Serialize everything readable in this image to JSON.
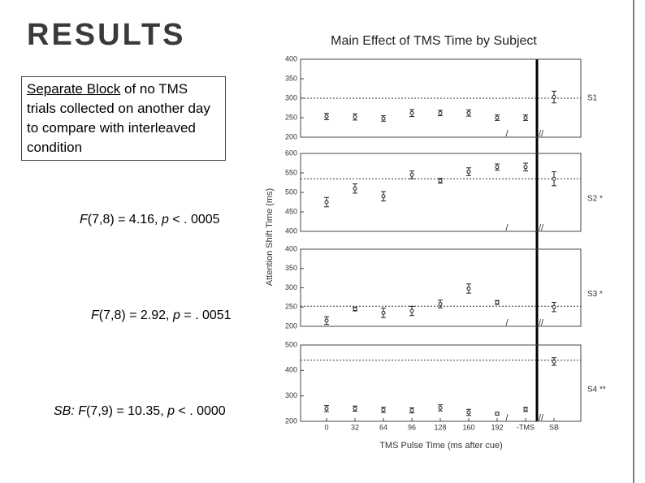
{
  "title": "RESULTS",
  "note": {
    "underlined": "Separate Block",
    "text": " of no TMS trials collected on another day to compare with interleaved condition"
  },
  "stats": [
    [
      "F",
      "(7,8) = 4.16, ",
      "p",
      " < . 0005"
    ],
    [
      "F",
      "(7,8) = 2.92, ",
      "p",
      " = . 0051"
    ],
    [
      "SB: F",
      "(7,9) = 10.35, ",
      "p",
      " < . 0000"
    ]
  ],
  "chart_data": {
    "type": "errorbar",
    "title": "Main Effect of TMS Time by Subject",
    "ylabel": "Attention Shift Time (ms)",
    "xlabel": "TMS Pulse Time (ms after cue)",
    "categories": [
      "0",
      "32",
      "64",
      "96",
      "128",
      "160",
      "192",
      "-TMS",
      "SB"
    ],
    "panels": [
      {
        "name": "S1",
        "ylim": [
          200,
          400
        ],
        "yticks": [
          200,
          250,
          300,
          350,
          400
        ],
        "reference": 300,
        "values": [
          253,
          252,
          248,
          262,
          262,
          262,
          250,
          250,
          303
        ],
        "errors": [
          8,
          8,
          7,
          9,
          7,
          8,
          7,
          7,
          15
        ]
      },
      {
        "name": "S2 *",
        "ylim": [
          400,
          600
        ],
        "yticks": [
          400,
          450,
          500,
          550,
          600
        ],
        "reference": 535,
        "values": [
          475,
          510,
          490,
          545,
          530,
          553,
          565,
          565,
          535
        ],
        "errors": [
          12,
          12,
          12,
          10,
          6,
          10,
          8,
          10,
          18
        ]
      },
      {
        "name": "S3 *",
        "ylim": [
          200,
          400
        ],
        "yticks": [
          200,
          250,
          300,
          350,
          400
        ],
        "reference": 252,
        "values": [
          215,
          245,
          235,
          240,
          258,
          298,
          262,
          null,
          250
        ],
        "errors": [
          10,
          5,
          12,
          12,
          10,
          12,
          5,
          null,
          12
        ]
      },
      {
        "name": "S4 **",
        "ylim": [
          200,
          500
        ],
        "yticks": [
          200,
          300,
          400,
          500
        ],
        "reference": 440,
        "values": [
          250,
          250,
          245,
          243,
          253,
          235,
          230,
          247,
          435
        ],
        "errors": [
          12,
          10,
          10,
          10,
          12,
          12,
          5,
          8,
          15
        ]
      }
    ]
  }
}
